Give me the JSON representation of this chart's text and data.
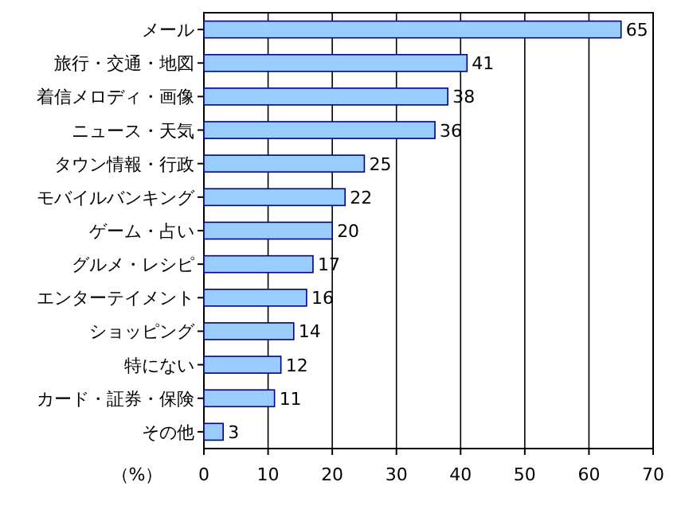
{
  "chart_data": {
    "type": "bar",
    "orientation": "horizontal",
    "categories": [
      "メール",
      "旅行・交通・地図",
      "着信メロディ・画像",
      "ニュース・天気",
      "タウン情報・行政",
      "モバイルバンキング",
      "ゲーム・占い",
      "グルメ・レシピ",
      "エンターテイメント",
      "ショッピング",
      "特にない",
      "カード・証券・保険",
      "その他"
    ],
    "values": [
      65,
      41,
      38,
      36,
      25,
      22,
      20,
      17,
      16,
      14,
      12,
      11,
      3
    ],
    "color": "#99ccff",
    "xlim": [
      0,
      70
    ],
    "xticks": [
      0,
      10,
      20,
      30,
      40,
      50,
      60,
      70
    ],
    "grid": "x",
    "data_labels": true,
    "xlabel": "（%）"
  }
}
